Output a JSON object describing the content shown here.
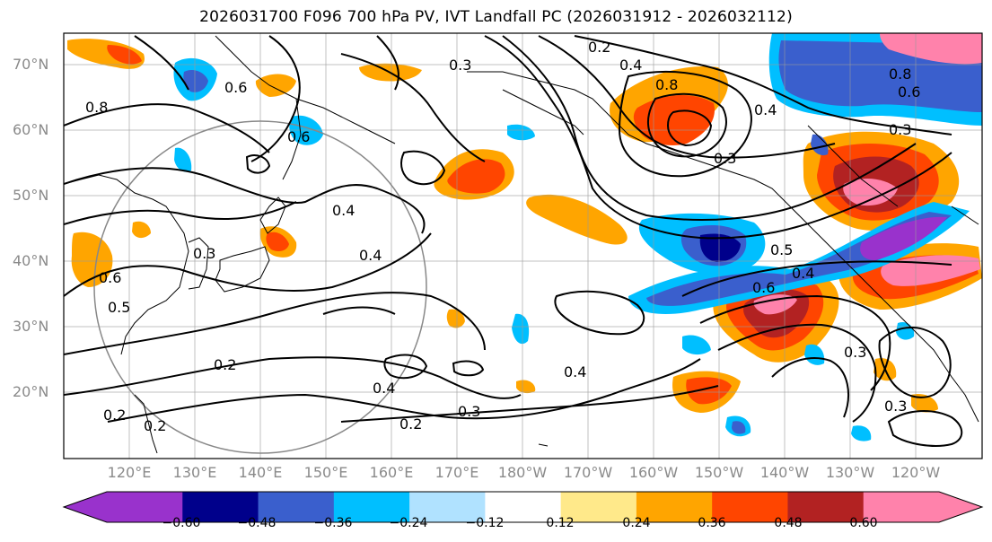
{
  "title": "2026031700 F096 700 hPa PV, IVT Landfall PC (2026031912 - 2026032112)",
  "lat_labels": [
    "70°N",
    "60°N",
    "50°N",
    "40°N",
    "30°N",
    "20°N"
  ],
  "lon_labels": [
    "120°E",
    "130°E",
    "140°E",
    "150°E",
    "160°E",
    "170°E",
    "180°W",
    "170°W",
    "160°W",
    "150°W",
    "140°W",
    "130°W",
    "120°W"
  ],
  "contour_labels": [
    "0.2",
    "0.3",
    "0.4",
    "0.5",
    "0.6",
    "0.8"
  ],
  "colorbar": {
    "ticks": [
      "−0.60",
      "−0.48",
      "−0.36",
      "−0.24",
      "−0.12",
      "0.12",
      "0.24",
      "0.36",
      "0.48",
      "0.60"
    ],
    "colors": [
      "#9932cc",
      "#00008b",
      "#3a5fcd",
      "#00bfff",
      "#b0e2ff",
      "#ffffff",
      "#ffe98a",
      "#ffa500",
      "#ff4500",
      "#b22222",
      "#ff82ab"
    ],
    "extend": "both"
  },
  "map": {
    "projection": "cylindrical",
    "lon_range": [
      "110°E",
      "110°W"
    ],
    "lat_range": [
      "10°N",
      "75°N"
    ],
    "grid": true,
    "range_circle_color": "#888888",
    "contour_color": "#000000"
  }
}
